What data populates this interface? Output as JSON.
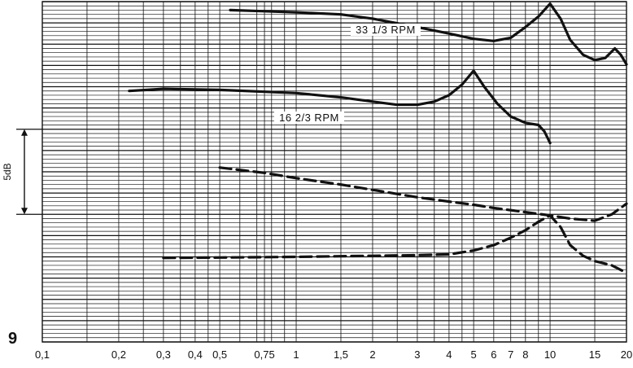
{
  "figure_number": "9",
  "chart_data": {
    "type": "line",
    "x_scale": "log",
    "x_ticks": [
      {
        "value": 0.1,
        "label": "0,1"
      },
      {
        "value": 0.2,
        "label": "0,2"
      },
      {
        "value": 0.3,
        "label": "0,3"
      },
      {
        "value": 0.4,
        "label": "0,4"
      },
      {
        "value": 0.5,
        "label": "0,5"
      },
      {
        "value": 0.75,
        "label": "0,75"
      },
      {
        "value": 1,
        "label": "1"
      },
      {
        "value": 1.5,
        "label": "1,5"
      },
      {
        "value": 2,
        "label": "2"
      },
      {
        "value": 3,
        "label": "3"
      },
      {
        "value": 4,
        "label": "4"
      },
      {
        "value": 5,
        "label": "5"
      },
      {
        "value": 6,
        "label": "6"
      },
      {
        "value": 7,
        "label": "7"
      },
      {
        "value": 8,
        "label": "8"
      },
      {
        "value": 10,
        "label": "10"
      },
      {
        "value": 15,
        "label": "15"
      },
      {
        "value": 20,
        "label": "20"
      }
    ],
    "xlim": [
      0.1,
      20
    ],
    "ylim": [
      0,
      16
    ],
    "grid": true,
    "scale_bar": {
      "label": "5dB",
      "from": 6,
      "to": 10
    },
    "series": [
      {
        "name": "33 1/3 RPM",
        "style": "solid",
        "points": [
          [
            0.55,
            15.6
          ],
          [
            0.75,
            15.55
          ],
          [
            1,
            15.5
          ],
          [
            1.5,
            15.4
          ],
          [
            2,
            15.2
          ],
          [
            3,
            14.8
          ],
          [
            4,
            14.5
          ],
          [
            5,
            14.25
          ],
          [
            6,
            14.15
          ],
          [
            7,
            14.3
          ],
          [
            8,
            14.8
          ],
          [
            9,
            15.3
          ],
          [
            10,
            15.9
          ],
          [
            11,
            15.2
          ],
          [
            12,
            14.2
          ],
          [
            13.5,
            13.5
          ],
          [
            15,
            13.25
          ],
          [
            16.5,
            13.35
          ],
          [
            18,
            13.8
          ],
          [
            19,
            13.5
          ],
          [
            20,
            13.05
          ]
        ]
      },
      {
        "name": "16 2/3 RPM",
        "style": "solid",
        "points": [
          [
            0.22,
            11.8
          ],
          [
            0.3,
            11.9
          ],
          [
            0.5,
            11.85
          ],
          [
            1,
            11.7
          ],
          [
            1.5,
            11.5
          ],
          [
            2,
            11.3
          ],
          [
            2.5,
            11.15
          ],
          [
            3,
            11.15
          ],
          [
            3.5,
            11.3
          ],
          [
            4,
            11.6
          ],
          [
            4.5,
            12.1
          ],
          [
            5,
            12.75
          ],
          [
            5.5,
            12.0
          ],
          [
            6.2,
            11.2
          ],
          [
            7,
            10.6
          ],
          [
            8,
            10.3
          ],
          [
            9,
            10.2
          ],
          [
            9.5,
            9.9
          ],
          [
            10,
            9.35
          ]
        ]
      },
      {
        "name": "",
        "style": "dashed",
        "points": [
          [
            0.5,
            8.2
          ],
          [
            0.75,
            7.95
          ],
          [
            1,
            7.7
          ],
          [
            1.5,
            7.4
          ],
          [
            2,
            7.15
          ],
          [
            3,
            6.8
          ],
          [
            4,
            6.6
          ],
          [
            5,
            6.45
          ],
          [
            6,
            6.3
          ],
          [
            8,
            6.1
          ],
          [
            10,
            5.95
          ],
          [
            12,
            5.8
          ],
          [
            15,
            5.7
          ],
          [
            17.5,
            6.0
          ],
          [
            20,
            6.5
          ]
        ]
      },
      {
        "name": "",
        "style": "dashed",
        "points": [
          [
            0.3,
            3.95
          ],
          [
            0.5,
            3.97
          ],
          [
            1,
            4.0
          ],
          [
            1.5,
            4.03
          ],
          [
            2,
            4.05
          ],
          [
            3,
            4.08
          ],
          [
            4,
            4.12
          ],
          [
            5,
            4.3
          ],
          [
            6,
            4.55
          ],
          [
            7,
            4.9
          ],
          [
            8,
            5.25
          ],
          [
            9,
            5.65
          ],
          [
            10,
            5.95
          ],
          [
            11,
            5.4
          ],
          [
            12,
            4.55
          ],
          [
            13.5,
            4.05
          ],
          [
            15,
            3.8
          ],
          [
            17.5,
            3.6
          ],
          [
            20,
            3.25
          ]
        ]
      }
    ]
  }
}
